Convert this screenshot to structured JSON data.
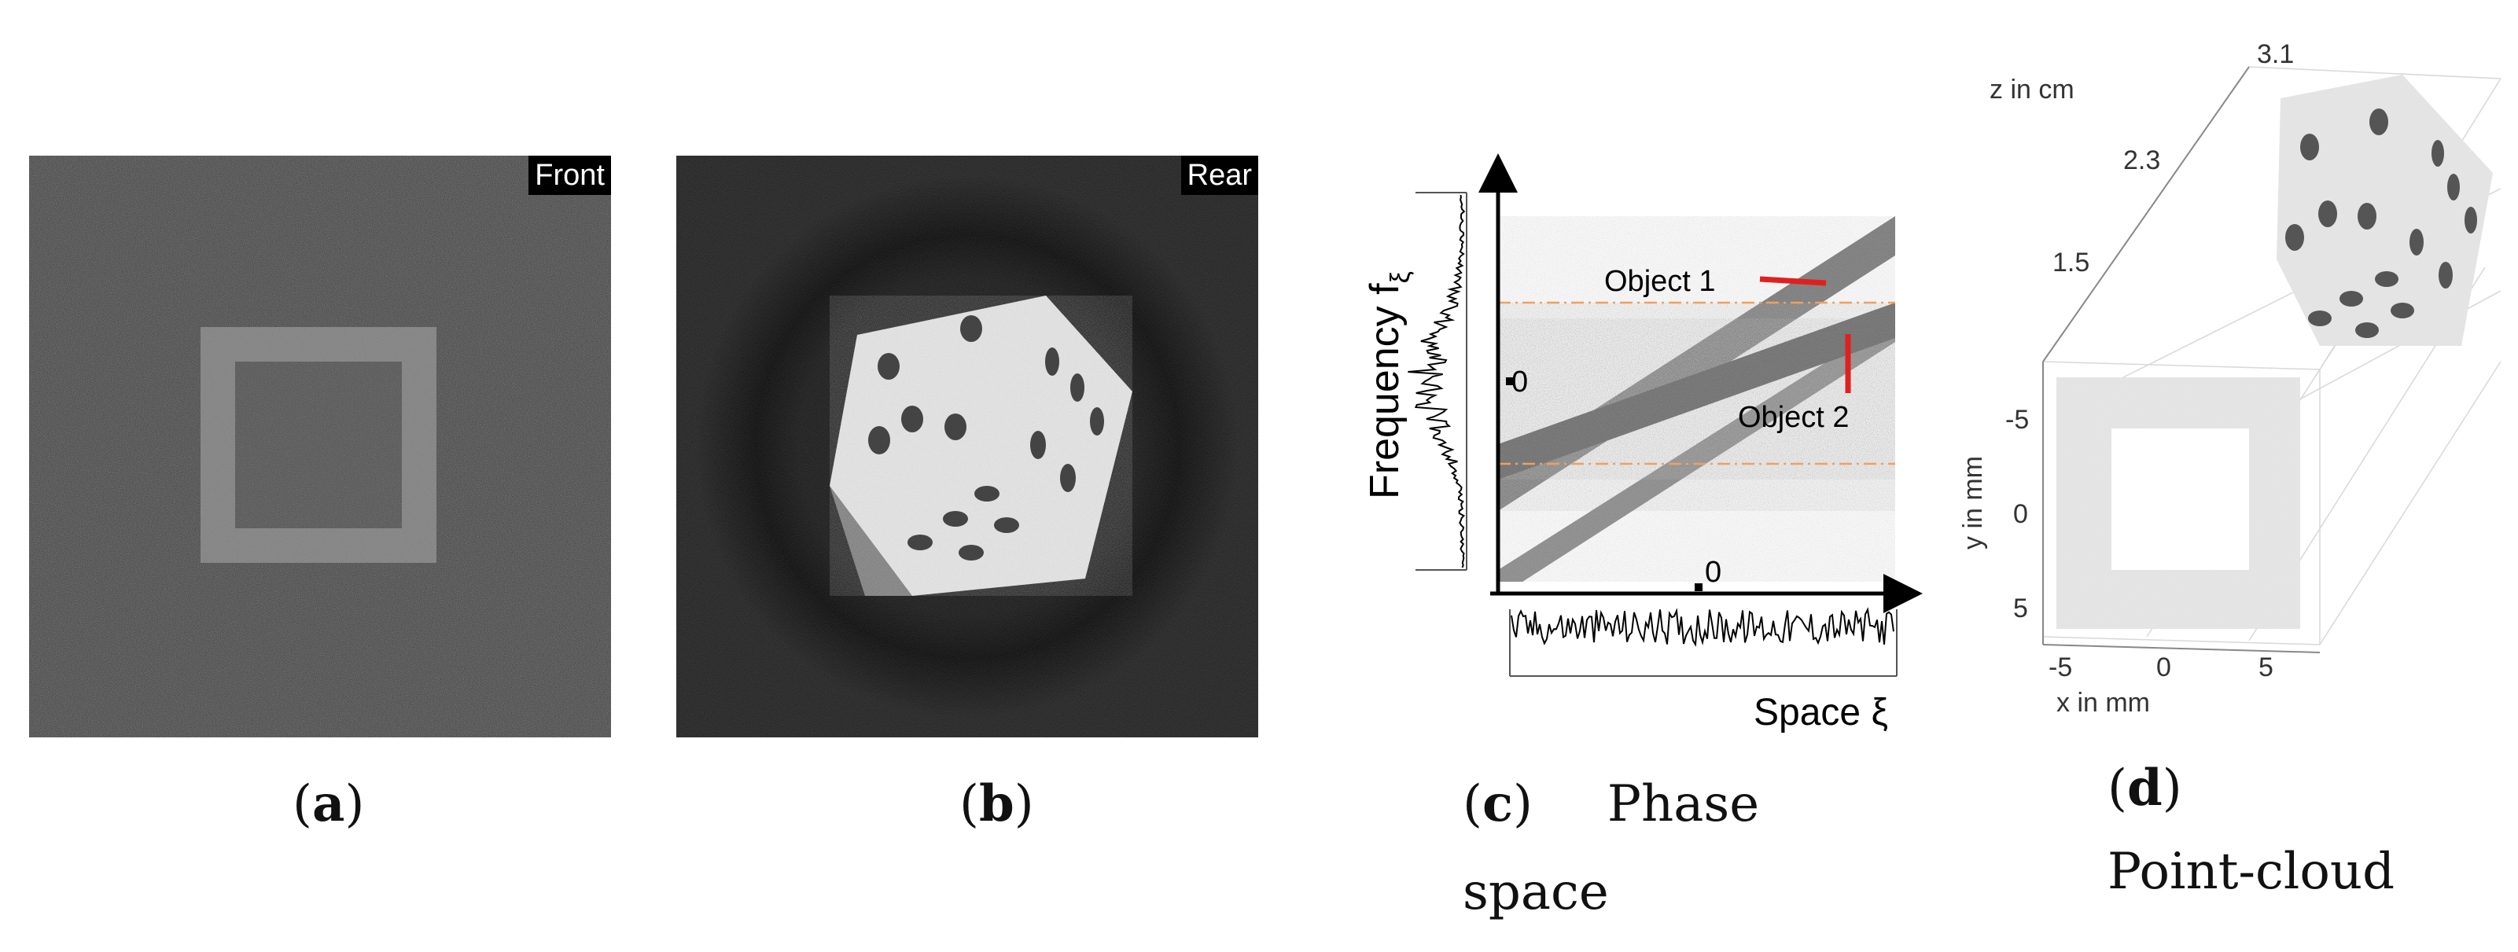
{
  "panels": {
    "a": {
      "label_tag": "Front",
      "caption_letter": "a"
    },
    "b": {
      "label_tag": "Rear",
      "caption_letter": "b"
    },
    "c": {
      "caption_letter": "c",
      "caption_word1": "Phase",
      "caption_word2": "space",
      "ylabel": "Frequency f",
      "ylabel_sub": "ξ",
      "xlabel": "Space ξ",
      "y_zero": "0",
      "x_zero": "0",
      "object1": "Object 1",
      "object2": "Object 2"
    },
    "d": {
      "caption_letter": "d",
      "caption_word": "Point-cloud",
      "zlabel": "z in cm",
      "ylabel": "y in mm",
      "xlabel": "x in mm",
      "z_ticks": [
        "3.1",
        "2.3",
        "1.5"
      ],
      "y_ticks": [
        "-5",
        "0",
        "5"
      ],
      "x_ticks": [
        "-5",
        "0",
        "5"
      ]
    }
  },
  "colors": {
    "accent_red": "#e02020",
    "guide_orange": "#f0a060",
    "band_gray": "#777777"
  }
}
